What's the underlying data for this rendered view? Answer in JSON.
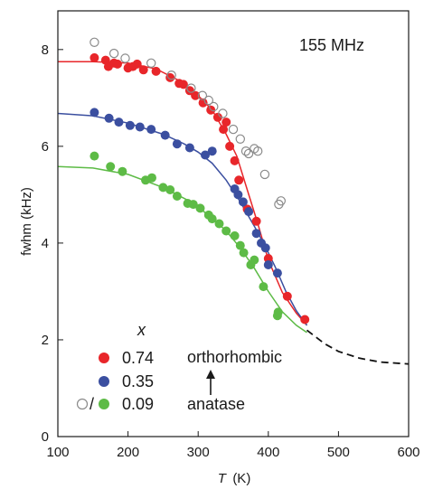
{
  "chart_data": {
    "type": "scatter",
    "annotation": "155 MHz",
    "xlabel_symbol": "T",
    "xlabel_unit": "(K)",
    "ylabel": "fwhm (kHz)",
    "xlim": [
      100,
      600
    ],
    "ylim": [
      0,
      8.8
    ],
    "x_ticks": [
      100,
      200,
      300,
      400,
      500,
      600
    ],
    "y_ticks": [
      0,
      2,
      4,
      6,
      8
    ],
    "legend_header": "x",
    "legend_separator": "/",
    "phase_top": "orthorhombic",
    "phase_bottom": "anatase",
    "series": [
      {
        "name": "0.74",
        "marker": "filled",
        "color": "#e8262a",
        "points": [
          [
            152,
            7.83
          ],
          [
            168,
            7.78
          ],
          [
            172,
            7.65
          ],
          [
            180,
            7.72
          ],
          [
            185,
            7.7
          ],
          [
            200,
            7.62
          ],
          [
            207,
            7.65
          ],
          [
            213,
            7.7
          ],
          [
            222,
            7.58
          ],
          [
            240,
            7.55
          ],
          [
            260,
            7.42
          ],
          [
            273,
            7.3
          ],
          [
            279,
            7.28
          ],
          [
            288,
            7.15
          ],
          [
            296,
            7.05
          ],
          [
            307,
            6.9
          ],
          [
            318,
            6.75
          ],
          [
            328,
            6.6
          ],
          [
            336,
            6.35
          ],
          [
            340,
            6.5
          ],
          [
            345,
            6.0
          ],
          [
            352,
            5.7
          ],
          [
            358,
            5.3
          ],
          [
            370,
            4.7
          ],
          [
            383,
            4.45
          ],
          [
            400,
            3.68
          ],
          [
            427,
            2.9
          ],
          [
            452,
            2.42
          ]
        ]
      },
      {
        "name": "0.35",
        "marker": "filled",
        "color": "#3b4fa0",
        "points": [
          [
            152,
            6.7
          ],
          [
            173,
            6.58
          ],
          [
            187,
            6.5
          ],
          [
            203,
            6.43
          ],
          [
            217,
            6.4
          ],
          [
            233,
            6.35
          ],
          [
            253,
            6.23
          ],
          [
            270,
            6.05
          ],
          [
            288,
            5.97
          ],
          [
            310,
            5.82
          ],
          [
            320,
            5.9
          ],
          [
            352,
            5.12
          ],
          [
            357,
            5.0
          ],
          [
            364,
            4.85
          ],
          [
            372,
            4.65
          ],
          [
            383,
            4.2
          ],
          [
            390,
            4.0
          ],
          [
            396,
            3.9
          ],
          [
            400,
            3.55
          ],
          [
            413,
            3.38
          ]
        ]
      },
      {
        "name": "0.09",
        "marker": "filled",
        "color": "#5dbb46",
        "points": [
          [
            152,
            5.8
          ],
          [
            175,
            5.58
          ],
          [
            192,
            5.48
          ],
          [
            225,
            5.3
          ],
          [
            234,
            5.35
          ],
          [
            250,
            5.15
          ],
          [
            260,
            5.1
          ],
          [
            270,
            4.97
          ],
          [
            285,
            4.82
          ],
          [
            293,
            4.8
          ],
          [
            303,
            4.72
          ],
          [
            315,
            4.58
          ],
          [
            320,
            4.5
          ],
          [
            330,
            4.4
          ],
          [
            340,
            4.25
          ],
          [
            352,
            4.15
          ],
          [
            360,
            3.95
          ],
          [
            365,
            3.8
          ],
          [
            375,
            3.55
          ],
          [
            380,
            3.65
          ],
          [
            393,
            3.1
          ],
          [
            413,
            2.5
          ],
          [
            414,
            2.57
          ]
        ]
      },
      {
        "name": "0.09 (open)",
        "marker": "open",
        "color": "#8a8a8a",
        "points": [
          [
            152,
            8.15
          ],
          [
            180,
            7.92
          ],
          [
            196,
            7.82
          ],
          [
            233,
            7.72
          ],
          [
            262,
            7.47
          ],
          [
            290,
            7.2
          ],
          [
            306,
            7.05
          ],
          [
            315,
            6.95
          ],
          [
            322,
            6.82
          ],
          [
            335,
            6.68
          ],
          [
            350,
            6.35
          ],
          [
            360,
            6.15
          ],
          [
            368,
            5.9
          ],
          [
            372,
            5.85
          ],
          [
            380,
            5.95
          ],
          [
            385,
            5.9
          ],
          [
            395,
            5.42
          ],
          [
            415,
            4.8
          ],
          [
            418,
            4.87
          ]
        ]
      }
    ],
    "fits": [
      {
        "color": "#e8262a",
        "style": "solid",
        "points": [
          [
            100,
            7.75
          ],
          [
            150,
            7.75
          ],
          [
            200,
            7.72
          ],
          [
            240,
            7.6
          ],
          [
            270,
            7.38
          ],
          [
            300,
            7.05
          ],
          [
            320,
            6.75
          ],
          [
            340,
            6.25
          ],
          [
            355,
            5.8
          ],
          [
            370,
            5.1
          ],
          [
            385,
            4.4
          ],
          [
            400,
            3.65
          ],
          [
            420,
            2.98
          ],
          [
            440,
            2.55
          ],
          [
            455,
            2.3
          ]
        ]
      },
      {
        "color": "#3b4fa0",
        "style": "solid",
        "points": [
          [
            100,
            6.68
          ],
          [
            150,
            6.63
          ],
          [
            200,
            6.48
          ],
          [
            250,
            6.25
          ],
          [
            280,
            6.05
          ],
          [
            300,
            5.88
          ],
          [
            320,
            5.65
          ],
          [
            340,
            5.3
          ],
          [
            360,
            4.85
          ],
          [
            380,
            4.35
          ],
          [
            395,
            3.95
          ],
          [
            410,
            3.5
          ],
          [
            425,
            3.0
          ],
          [
            440,
            2.6
          ],
          [
            455,
            2.3
          ]
        ]
      },
      {
        "color": "#5dbb46",
        "style": "solid",
        "points": [
          [
            100,
            5.58
          ],
          [
            150,
            5.55
          ],
          [
            200,
            5.42
          ],
          [
            250,
            5.15
          ],
          [
            290,
            4.85
          ],
          [
            320,
            4.52
          ],
          [
            340,
            4.25
          ],
          [
            360,
            3.9
          ],
          [
            380,
            3.48
          ],
          [
            400,
            3.0
          ],
          [
            420,
            2.58
          ],
          [
            440,
            2.3
          ],
          [
            455,
            2.15
          ]
        ]
      },
      {
        "color": "#111111",
        "style": "dashed",
        "points": [
          [
            455,
            2.2
          ],
          [
            480,
            1.92
          ],
          [
            500,
            1.76
          ],
          [
            530,
            1.62
          ],
          [
            560,
            1.54
          ],
          [
            600,
            1.5
          ]
        ]
      }
    ]
  }
}
